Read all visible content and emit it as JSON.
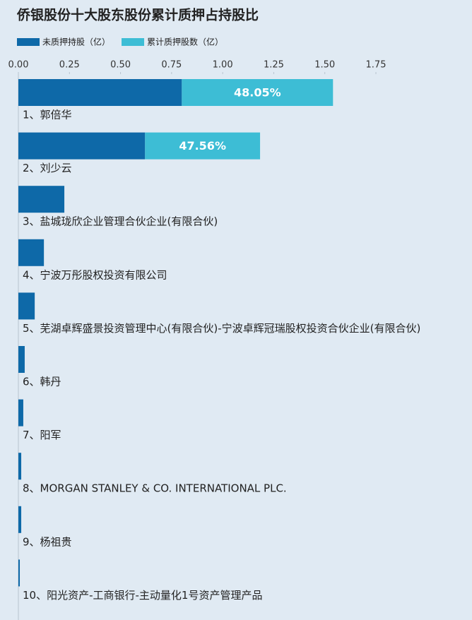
{
  "chart_data": {
    "type": "stacked_barh",
    "title": "侨银股份十大股东股份累计质押占持股比",
    "categories": [
      "1、郭倍华",
      "2、刘少云",
      "3、盐城珑欣企业管理合伙企业(有限合伙)",
      "4、宁波万彤股权投资有限公司",
      "5、芜湖卓辉盛景投资管理中心(有限合伙)-宁波卓辉冠瑞股权投资合伙企业(有限合伙)",
      "6、韩丹",
      "7、阳军",
      "8、MORGAN STANLEY & CO. INTERNATIONAL PLC.",
      "9、杨祖贵",
      "10、阳光资产-工商银行-主动量化1号资产管理产品"
    ],
    "series": [
      {
        "name": "未质押持股（亿）",
        "color": "#0e69a8",
        "values": [
          0.8,
          0.62,
          0.225,
          0.125,
          0.08,
          0.031,
          0.024,
          0.014,
          0.014,
          0.007
        ]
      },
      {
        "name": "累计质押股数（亿）",
        "color": "#3dbdd5",
        "values": [
          0.74,
          0.563,
          0,
          0,
          0,
          0,
          0,
          0,
          0,
          0
        ],
        "ratio_labels": [
          "48.05%",
          "47.56%",
          null,
          null,
          null,
          null,
          null,
          null,
          null,
          null
        ]
      }
    ],
    "xlim": [
      0,
      1.75
    ],
    "xticks": [
      {
        "value": 0,
        "label": "0.00"
      },
      {
        "value": 0.25,
        "label": "0.25"
      },
      {
        "value": 0.5,
        "label": "0.50"
      },
      {
        "value": 0.75,
        "label": "0.75"
      },
      {
        "value": 1,
        "label": "1.00"
      },
      {
        "value": 1.25,
        "label": "1.25"
      },
      {
        "value": 1.5,
        "label": "1.50"
      },
      {
        "value": 1.75,
        "label": "1.75"
      }
    ]
  }
}
